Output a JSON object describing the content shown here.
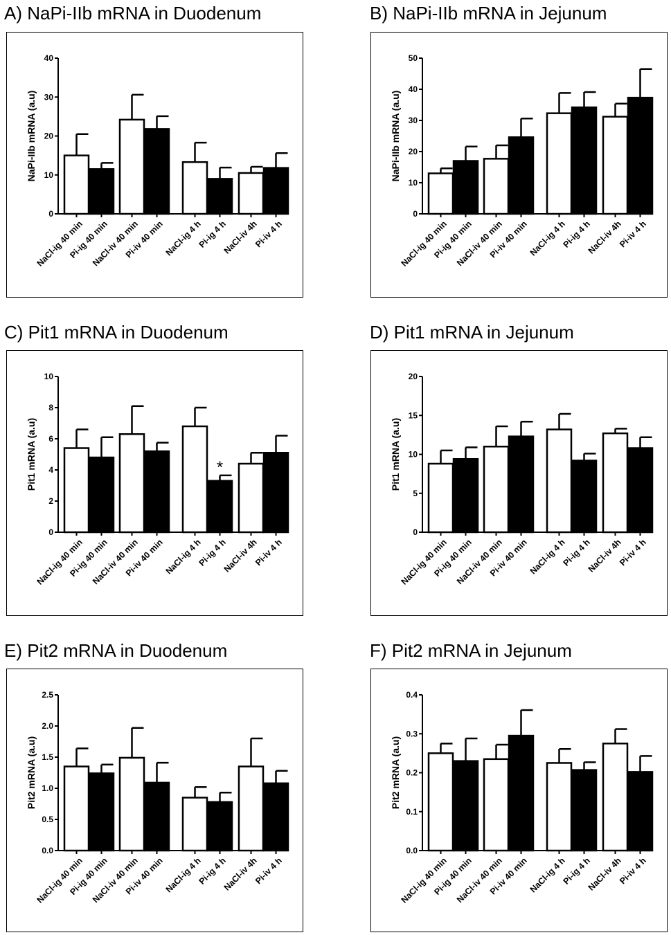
{
  "chart_data": [
    {
      "type": "bar",
      "title": "A) NaPi-IIb mRNA in Duodenum",
      "ylabel": "NaPi-IIb mRNA (a.u)",
      "ylim": [
        0,
        40
      ],
      "yticks": [
        "0",
        "10",
        "20",
        "30",
        "40"
      ],
      "categories": [
        "NaCl-ig 40 min",
        "Pi-ig 40 min",
        "NaCl-iv 40 min",
        "Pi-iv 40 min",
        "NaCl-ig 4 h",
        "Pi-ig 4 h",
        "NaCl-iv 4h",
        "Pi-iv 4 h"
      ],
      "values": [
        15.0,
        11.5,
        24.2,
        21.8,
        13.3,
        9.0,
        10.5,
        11.8
      ],
      "errors": [
        5.5,
        1.6,
        6.4,
        3.3,
        5.0,
        2.9,
        1.6,
        3.8
      ],
      "fill": [
        "#ffffff",
        "#000000",
        "#ffffff",
        "#000000",
        "#ffffff",
        "#000000",
        "#ffffff",
        "#000000"
      ],
      "annotations": [
        "",
        "",
        "",
        "",
        "",
        "",
        "",
        ""
      ]
    },
    {
      "type": "bar",
      "title": "B) NaPi-IIb mRNA in Jejunum",
      "ylabel": "NaPi-IIb mRNA (a.u)",
      "ylim": [
        0,
        50
      ],
      "yticks": [
        "0",
        "10",
        "20",
        "30",
        "40",
        "50"
      ],
      "categories": [
        "NaCl-ig 40 min",
        "Pi-ig 40 min",
        "NaCl-iv 40 min",
        "Pi-iv 40 min",
        "NaCl-ig 4 h",
        "Pi-ig 4 h",
        "NaCl-iv 4h",
        "Pi-iv 4 h"
      ],
      "values": [
        13.0,
        17.0,
        17.7,
        24.6,
        32.3,
        34.2,
        31.2,
        37.3
      ],
      "errors": [
        1.6,
        4.6,
        4.3,
        6.0,
        6.5,
        4.9,
        4.2,
        9.2
      ],
      "fill": [
        "#ffffff",
        "#000000",
        "#ffffff",
        "#000000",
        "#ffffff",
        "#000000",
        "#ffffff",
        "#000000"
      ],
      "annotations": [
        "",
        "",
        "",
        "",
        "",
        "",
        "",
        ""
      ]
    },
    {
      "type": "bar",
      "title": "C) Pit1 mRNA in Duodenum",
      "ylabel": "Pit1 mRNA (a.u)",
      "ylim": [
        0,
        10
      ],
      "yticks": [
        "0",
        "2",
        "4",
        "6",
        "8",
        "10"
      ],
      "categories": [
        "NaCl-ig 40 min",
        "Pi-ig 40 min",
        "NaCl-iv 40 min",
        "Pi-iv 40 min",
        "NaCl-ig 4 h",
        "Pi-ig 4 h",
        "NaCl-iv 4h",
        "Pi-iv 4 h"
      ],
      "values": [
        5.4,
        4.8,
        6.3,
        5.2,
        6.8,
        3.3,
        4.4,
        5.1
      ],
      "errors": [
        1.2,
        1.3,
        1.8,
        0.55,
        1.2,
        0.35,
        0.7,
        1.1
      ],
      "fill": [
        "#ffffff",
        "#000000",
        "#ffffff",
        "#000000",
        "#ffffff",
        "#000000",
        "#ffffff",
        "#000000"
      ],
      "annotations": [
        "",
        "",
        "",
        "",
        "",
        "*",
        "",
        ""
      ]
    },
    {
      "type": "bar",
      "title": "D) Pit1 mRNA in Jejunum",
      "ylabel": "Pit1 mRNA (a.u)",
      "ylim": [
        0,
        20
      ],
      "yticks": [
        "0",
        "5",
        "10",
        "15",
        "20"
      ],
      "categories": [
        "NaCl-ig 40 min",
        "Pi-ig 40 min",
        "NaCl-iv 40 min",
        "Pi-iv 40 min",
        "NaCl-ig 4 h",
        "Pi-ig 4 h",
        "NaCl-iv 4h",
        "Pi-iv 4 h"
      ],
      "values": [
        8.8,
        9.4,
        11.0,
        12.3,
        13.2,
        9.2,
        12.7,
        10.8
      ],
      "errors": [
        1.7,
        1.5,
        2.6,
        1.9,
        2.0,
        0.9,
        0.6,
        1.4
      ],
      "fill": [
        "#ffffff",
        "#000000",
        "#ffffff",
        "#000000",
        "#ffffff",
        "#000000",
        "#ffffff",
        "#000000"
      ],
      "annotations": [
        "",
        "",
        "",
        "",
        "",
        "",
        "",
        ""
      ]
    },
    {
      "type": "bar",
      "title": "E) Pit2 mRNA in Duodenum",
      "ylabel": "Pit2 mRNA (a.u)",
      "ylim": [
        0,
        2.5
      ],
      "yticks": [
        "0.0",
        "0.5",
        "1.0",
        "1.5",
        "2.0",
        "2.5"
      ],
      "categories": [
        "NaCl-ig 40 min",
        "Pi-ig 40 min",
        "NaCl-iv 40 min",
        "Pi-iv 40 min",
        "NaCl-ig 4 h",
        "Pi-ig 4 h",
        "NaCl-iv 4h",
        "Pi-iv 4 h"
      ],
      "values": [
        1.35,
        1.24,
        1.49,
        1.09,
        0.85,
        0.78,
        1.35,
        1.08
      ],
      "errors": [
        0.29,
        0.14,
        0.48,
        0.32,
        0.17,
        0.15,
        0.45,
        0.2
      ],
      "fill": [
        "#ffffff",
        "#000000",
        "#ffffff",
        "#000000",
        "#ffffff",
        "#000000",
        "#ffffff",
        "#000000"
      ],
      "annotations": [
        "",
        "",
        "",
        "",
        "",
        "",
        "",
        ""
      ]
    },
    {
      "type": "bar",
      "title": "F) Pit2 mRNA in Jejunum",
      "ylabel": "Pit2 mRNA (a.u)",
      "ylim": [
        0,
        0.4
      ],
      "yticks": [
        "0.0",
        "0.1",
        "0.2",
        "0.3",
        "0.4"
      ],
      "categories": [
        "NaCl-ig 40 min",
        "Pi-ig 40 min",
        "NaCl-iv 40 min",
        "Pi-iv 40 min",
        "NaCl-ig 4 h",
        "Pi-ig 4 h",
        "NaCl-iv 4h",
        "Pi-iv 4 h"
      ],
      "values": [
        0.25,
        0.23,
        0.235,
        0.295,
        0.225,
        0.207,
        0.275,
        0.202
      ],
      "errors": [
        0.025,
        0.058,
        0.037,
        0.066,
        0.036,
        0.02,
        0.037,
        0.041
      ],
      "fill": [
        "#ffffff",
        "#000000",
        "#ffffff",
        "#000000",
        "#ffffff",
        "#000000",
        "#ffffff",
        "#000000"
      ],
      "annotations": [
        "",
        "",
        "",
        "",
        "",
        "",
        "",
        ""
      ]
    }
  ]
}
